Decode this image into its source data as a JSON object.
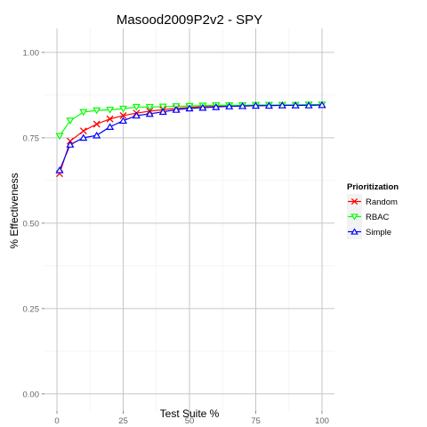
{
  "chart_data": {
    "type": "line",
    "title": "Masood2009P2v2 - SPY",
    "xlabel": "Test Suite %",
    "ylabel": "% Effectiveness",
    "xlim": [
      0,
      100
    ],
    "ylim": [
      0,
      1
    ],
    "x_ticks": [
      0,
      25,
      50,
      75,
      100
    ],
    "x_tick_labels": [
      "0",
      "25",
      "50",
      "75",
      "100"
    ],
    "y_ticks": [
      0,
      0.25,
      0.5,
      0.75,
      1.0
    ],
    "y_tick_labels": [
      "0.00",
      "0.25",
      "0.50",
      "0.75",
      "1.00"
    ],
    "grid": true,
    "legend_title": "Prioritization",
    "legend_position": "right",
    "x": [
      1,
      5,
      10,
      15,
      20,
      25,
      30,
      35,
      40,
      45,
      50,
      55,
      60,
      65,
      70,
      75,
      80,
      85,
      90,
      95,
      100
    ],
    "series": [
      {
        "name": "Random",
        "color": "#ff0000",
        "marker": "x",
        "values": [
          0.645,
          0.74,
          0.77,
          0.79,
          0.805,
          0.815,
          0.822,
          0.828,
          0.832,
          0.836,
          0.839,
          0.841,
          0.842,
          0.843,
          0.843,
          0.844,
          0.845,
          0.845,
          0.845,
          0.846,
          0.846
        ]
      },
      {
        "name": "RBAC",
        "color": "#00ff00",
        "marker": "triangle-down",
        "values": [
          0.755,
          0.8,
          0.825,
          0.83,
          0.832,
          0.835,
          0.84,
          0.84,
          0.841,
          0.842,
          0.843,
          0.844,
          0.845,
          0.845,
          0.845,
          0.846,
          0.846,
          0.846,
          0.846,
          0.847,
          0.847
        ]
      },
      {
        "name": "Simple",
        "color": "#0000ff",
        "marker": "triangle-up",
        "values": [
          0.655,
          0.73,
          0.75,
          0.757,
          0.782,
          0.8,
          0.815,
          0.82,
          0.826,
          0.832,
          0.836,
          0.838,
          0.84,
          0.842,
          0.843,
          0.844,
          0.844,
          0.845,
          0.845,
          0.845,
          0.846
        ]
      }
    ]
  }
}
